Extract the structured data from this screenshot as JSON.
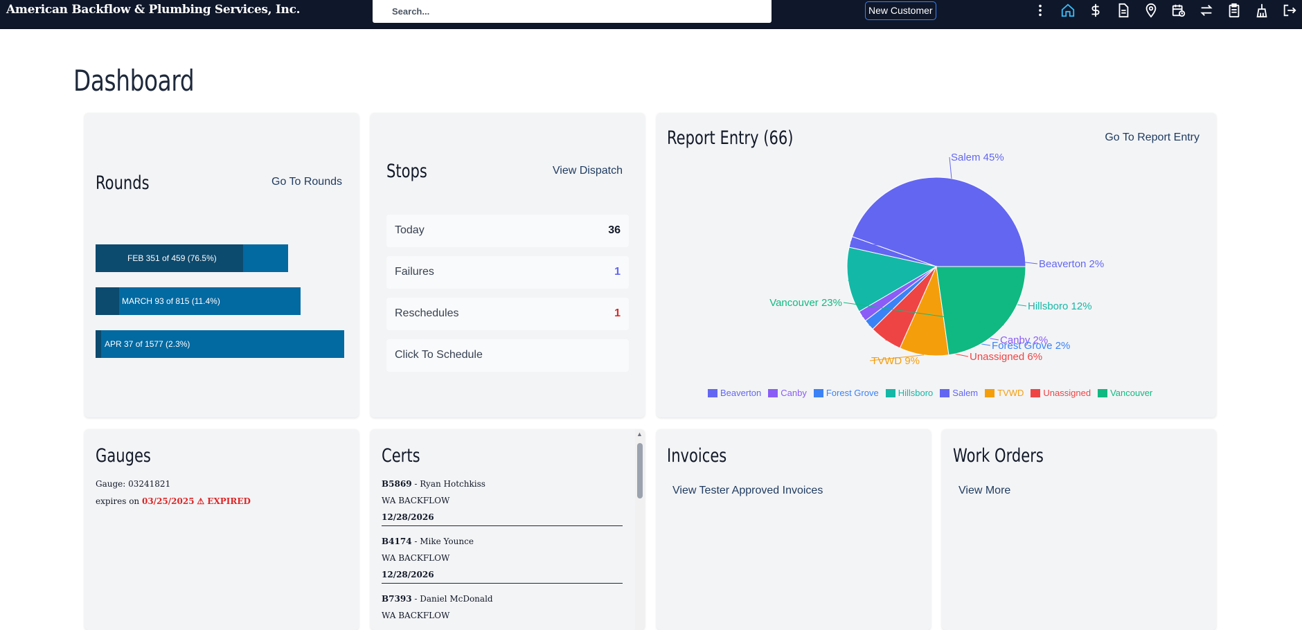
{
  "header": {
    "brand": "American Backflow & Plumbing Services, Inc.",
    "search_placeholder": "Search...",
    "new_customer": "New Customer",
    "icons": [
      "more-vertical-icon",
      "home-icon",
      "dollar-icon",
      "document-icon",
      "map-pin-icon",
      "calendar-clock-icon",
      "swap-icon",
      "clipboard-icon",
      "broom-icon",
      "logout-icon"
    ]
  },
  "page": {
    "title": "Dashboard"
  },
  "rounds": {
    "title": "Rounds",
    "link": "Go To Rounds",
    "bars": [
      {
        "label": "FEB 351 of 459 (76.5%)",
        "fraction": 0.765
      },
      {
        "label": "MARCH 93 of 815 (11.4%)",
        "fraction": 0.114
      },
      {
        "label": "APR 37 of 1577 (2.3%)",
        "fraction": 0.023
      }
    ]
  },
  "stops": {
    "title": "Stops",
    "link": "View Dispatch",
    "rows": [
      {
        "label": "Today",
        "value": "36",
        "color": "#111827"
      },
      {
        "label": "Failures",
        "value": "1",
        "color": "#6366f1"
      },
      {
        "label": "Reschedules",
        "value": "1",
        "color": "#dc2626"
      },
      {
        "label": "Click To Schedule",
        "value": "",
        "color": "#111827"
      }
    ]
  },
  "report_entry": {
    "title": "Report Entry (66)",
    "link": "Go To Report Entry"
  },
  "chart_data": {
    "type": "pie",
    "title": "",
    "slices": [
      {
        "name": "Salem",
        "value": 45,
        "color": "#6366f1"
      },
      {
        "name": "Beaverton",
        "value": 2,
        "color": "#6366f1"
      },
      {
        "name": "Hillsboro",
        "value": 12,
        "color": "#14b8a6"
      },
      {
        "name": "Canby",
        "value": 2,
        "color": "#8b5cf6"
      },
      {
        "name": "Forest Grove",
        "value": 2,
        "color": "#3b82f6"
      },
      {
        "name": "Unassigned",
        "value": 6,
        "color": "#ef4444"
      },
      {
        "name": "TVWD",
        "value": 9,
        "color": "#f59e0b"
      },
      {
        "name": "Vancouver",
        "value": 23,
        "color": "#10b981"
      }
    ],
    "slice_labels": [
      "Salem 45%",
      "Beaverton 2%",
      "Hillsboro 12%",
      "Canby 2%",
      "Forest Grove 2%",
      "Unassigned 6%",
      "TVWD 9%",
      "Vancouver 23%"
    ],
    "legend": [
      {
        "name": "Beaverton",
        "color": "#6366f1"
      },
      {
        "name": "Canby",
        "color": "#8b5cf6"
      },
      {
        "name": "Forest Grove",
        "color": "#3b82f6"
      },
      {
        "name": "Hillsboro",
        "color": "#14b8a6"
      },
      {
        "name": "Salem",
        "color": "#6366f1"
      },
      {
        "name": "TVWD",
        "color": "#f59e0b"
      },
      {
        "name": "Unassigned",
        "color": "#ef4444"
      },
      {
        "name": "Vancouver",
        "color": "#10b981"
      }
    ],
    "legend_position": "bottom"
  },
  "gauges": {
    "title": "Gauges",
    "gauge_label": "Gauge:",
    "gauge_number": "03241821",
    "expires_label": "expires on",
    "expires_date": "03/25/2025",
    "expired_text": "⚠ EXPIRED"
  },
  "certs": {
    "title": "Certs",
    "items": [
      {
        "id": "B5869",
        "name": " - Ryan Hotchkiss",
        "type": "WA BACKFLOW",
        "date": "12/28/2026"
      },
      {
        "id": "B4174",
        "name": " - Mike Younce",
        "type": "WA BACKFLOW",
        "date": "12/28/2026"
      },
      {
        "id": "B7393",
        "name": " - Daniel McDonald",
        "type": "WA BACKFLOW",
        "date": ""
      }
    ]
  },
  "invoices": {
    "title": "Invoices",
    "link": "View Tester Approved Invoices"
  },
  "work_orders": {
    "title": "Work Orders",
    "link": "View More"
  }
}
